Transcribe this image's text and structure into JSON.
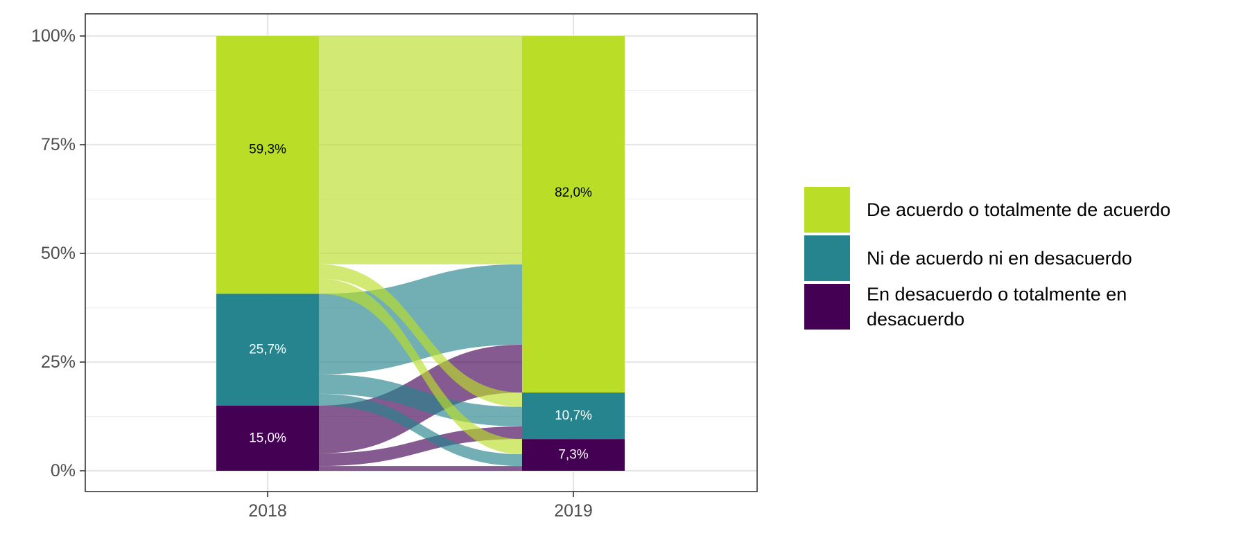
{
  "chart_data": {
    "type": "alluvial",
    "x": [
      "2018",
      "2019"
    ],
    "y_ticks": [
      "0%",
      "25%",
      "50%",
      "75%",
      "100%"
    ],
    "ylim": [
      0,
      100
    ],
    "grid": true,
    "legend_position": "right",
    "categories": [
      {
        "key": "acuerdo",
        "name": "De acuerdo o totalmente de acuerdo",
        "color": "#bade28",
        "label_color": "#000000"
      },
      {
        "key": "neutral",
        "name": "Ni de acuerdo ni en desacuerdo",
        "color": "#25848e",
        "label_color": "#ffffff"
      },
      {
        "key": "desacuerdo",
        "name": "En desacuerdo o totalmente en desacuerdo",
        "color": "#440154",
        "label_color": "#ffffff"
      }
    ],
    "stacks": {
      "2018": [
        {
          "key": "acuerdo",
          "value": 59.3,
          "label": "59,3%"
        },
        {
          "key": "neutral",
          "value": 25.7,
          "label": "25,7%"
        },
        {
          "key": "desacuerdo",
          "value": 15.0,
          "label": "15,0%"
        }
      ],
      "2019": [
        {
          "key": "acuerdo",
          "value": 82.0,
          "label": "82,0%"
        },
        {
          "key": "neutral",
          "value": 10.7,
          "label": "10,7%"
        },
        {
          "key": "desacuerdo",
          "value": 7.3,
          "label": "7,3%"
        }
      ]
    },
    "flows": [
      {
        "from": "acuerdo",
        "to": "acuerdo",
        "value": 52.5
      },
      {
        "from": "acuerdo",
        "to": "neutral",
        "value": 3.3
      },
      {
        "from": "acuerdo",
        "to": "desacuerdo",
        "value": 3.5
      },
      {
        "from": "neutral",
        "to": "acuerdo",
        "value": 18.5
      },
      {
        "from": "neutral",
        "to": "neutral",
        "value": 4.5
      },
      {
        "from": "neutral",
        "to": "desacuerdo",
        "value": 2.7
      },
      {
        "from": "desacuerdo",
        "to": "acuerdo",
        "value": 11.0
      },
      {
        "from": "desacuerdo",
        "to": "neutral",
        "value": 2.9
      },
      {
        "from": "desacuerdo",
        "to": "desacuerdo",
        "value": 1.1
      }
    ]
  }
}
